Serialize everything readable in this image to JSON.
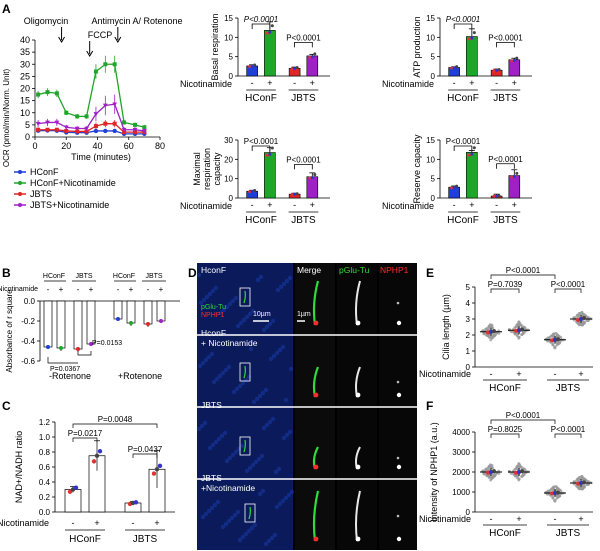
{
  "colors": {
    "hconf": "#1f3fd6",
    "hconf_nic": "#1fa52a",
    "jbts": "#e02525",
    "jbts_nic": "#a020c8",
    "green_fluor": "#2fdc3a",
    "red_fluor": "#ff2a2a"
  },
  "panels": {
    "A": "A",
    "B": "B",
    "C": "C",
    "D": "D",
    "E": "E",
    "F": "F"
  },
  "chart_data": [
    {
      "id": "A-trace",
      "type": "line",
      "xlabel": "Time (minutes)",
      "ylabel": "OCR (pmol/min/Norm. Unit)",
      "xlim": [
        0,
        80
      ],
      "ylim": [
        0,
        40
      ],
      "xticks": [
        0,
        20,
        40,
        60,
        80
      ],
      "yticks": [
        0,
        5,
        10,
        15,
        20,
        25,
        30,
        35,
        40
      ],
      "annotations": [
        "Oligomycin",
        "FCCP",
        "Antimycin A/\nRotenone"
      ],
      "annotation_x": [
        17,
        35,
        53
      ],
      "x": [
        2,
        8,
        14,
        20,
        27,
        33,
        39,
        45,
        51,
        57,
        64,
        70
      ],
      "series": [
        {
          "name": "HConF",
          "values": [
            2.6,
            2.7,
            2.6,
            1.9,
            1.8,
            1.8,
            2.5,
            2.5,
            2.5,
            1.3,
            1.3,
            1.3
          ]
        },
        {
          "name": "HConF+Nicotinamide",
          "values": [
            17.5,
            18.5,
            18,
            10,
            8.5,
            8.5,
            27,
            30,
            30,
            6,
            5,
            4
          ]
        },
        {
          "name": "JBTS",
          "values": [
            3,
            3,
            3,
            2.5,
            2.3,
            2.3,
            4.5,
            5.5,
            5.5,
            2,
            2,
            2
          ]
        },
        {
          "name": "JBTS+Nicotinamide",
          "values": [
            5.5,
            6,
            6,
            4,
            3.5,
            3.5,
            9.5,
            13,
            13.5,
            3,
            3,
            2.5
          ]
        }
      ],
      "errors": [
        [
          0.3,
          0.3,
          0.3,
          0.3,
          0.3,
          0.3,
          0.5,
          0.5,
          0.5,
          0.3,
          0.3,
          0.3
        ],
        [
          1.5,
          1.6,
          1.5,
          1,
          1,
          1,
          3,
          3.5,
          3.5,
          1,
          1,
          1
        ],
        [
          0.5,
          0.5,
          0.5,
          0.5,
          0.5,
          0.5,
          1.5,
          1.5,
          1.5,
          0.4,
          0.4,
          0.4
        ],
        [
          1.5,
          1.5,
          1.5,
          1,
          1,
          1,
          3,
          4,
          4,
          1,
          1,
          1
        ]
      ]
    },
    {
      "id": "A-basal",
      "type": "bar",
      "ylabel": "Basal respiration",
      "ylim": [
        0,
        15
      ],
      "yticks": [
        0,
        5,
        10,
        15
      ],
      "categories": [
        "HConF -",
        "HConF +",
        "JBTS -",
        "JBTS +"
      ],
      "values": [
        2.6,
        11.8,
        2.0,
        5.2
      ],
      "errors": [
        0.3,
        2.2,
        0.3,
        0.4
      ],
      "sig": [
        {
          "label": "P<0.0001",
          "italic": true
        },
        {
          "label": "P<0.0001",
          "italic": false
        }
      ]
    },
    {
      "id": "A-atp",
      "type": "bar",
      "ylabel": "ATP production",
      "ylim": [
        0,
        15
      ],
      "yticks": [
        0,
        5,
        10,
        15
      ],
      "categories": [
        "HConF -",
        "HConF +",
        "JBTS -",
        "JBTS +"
      ],
      "values": [
        2.2,
        10.2,
        1.5,
        4.2
      ],
      "errors": [
        0.2,
        2.0,
        0.3,
        0.4
      ],
      "sig": [
        {
          "label": "P<0.0001",
          "italic": true
        },
        {
          "label": "P<0.0001",
          "italic": false
        }
      ]
    },
    {
      "id": "A-maximal",
      "type": "bar",
      "ylabel": "Maximal respiration capacity",
      "ylim": [
        0,
        30
      ],
      "yticks": [
        0,
        10,
        20,
        30
      ],
      "categories": [
        "HConF -",
        "HConF +",
        "JBTS -",
        "JBTS +"
      ],
      "values": [
        3.5,
        23.5,
        2.0,
        11.0
      ],
      "errors": [
        0.5,
        2.5,
        0.5,
        2.0
      ],
      "sig": [
        {
          "label": "P<0.0001",
          "italic": false
        },
        {
          "label": "P<0.0001",
          "italic": false
        }
      ]
    },
    {
      "id": "A-reserve",
      "type": "bar",
      "ylabel": "Reserve capacity",
      "ylim": [
        0,
        15
      ],
      "yticks": [
        0,
        5,
        10,
        15
      ],
      "categories": [
        "HConF -",
        "HConF +",
        "JBTS -",
        "JBTS +"
      ],
      "values": [
        2.8,
        11.8,
        0.5,
        5.8
      ],
      "errors": [
        0.3,
        0.5,
        0.5,
        1.5
      ],
      "sig": [
        {
          "label": "P<0.0001",
          "italic": false
        },
        {
          "label": "P<0.0001",
          "italic": false
        }
      ]
    },
    {
      "id": "B",
      "type": "bar",
      "ylabel": "Absorbance of r square",
      "ylim": [
        -0.6,
        0.0
      ],
      "yticks": [
        0.0,
        -0.2,
        -0.4,
        -0.6
      ],
      "groups": [
        "-Rotenone",
        "+Rotenone"
      ],
      "categories": [
        "HConF -",
        "HConF +",
        "JBTS -",
        "JBTS +"
      ],
      "values_minus_rotenone": [
        -0.46,
        -0.47,
        -0.48,
        -0.43
      ],
      "values_plus_rotenone": [
        -0.18,
        -0.22,
        -0.23,
        -0.2
      ],
      "errors": [
        0.02,
        0.03,
        0.03,
        0.02
      ],
      "sig": [
        {
          "label": "P=0.0367"
        },
        {
          "label": "P=0.0153"
        }
      ]
    },
    {
      "id": "C",
      "type": "bar",
      "ylabel": "NAD+/NADH ratio",
      "ylim": [
        0,
        1.2
      ],
      "yticks": [
        0.0,
        0.2,
        0.4,
        0.6,
        0.8,
        1.0,
        1.2
      ],
      "categories": [
        "HConF -",
        "HConF +",
        "JBTS -",
        "JBTS +"
      ],
      "values": [
        0.3,
        0.75,
        0.12,
        0.57
      ],
      "errors": [
        0.04,
        0.2,
        0.02,
        0.25
      ],
      "sig": [
        {
          "label": "P=0.0048"
        },
        {
          "label": "P=0.0217"
        },
        {
          "label": "P=0.0437"
        }
      ]
    },
    {
      "id": "E",
      "type": "scatter",
      "ylabel": "Cilia length (µm)",
      "ylim": [
        0,
        5
      ],
      "yticks": [
        0,
        1,
        2,
        3,
        4,
        5
      ],
      "categories": [
        "HConF -",
        "HConF +",
        "JBTS -",
        "JBTS +"
      ],
      "values": [
        2.2,
        2.3,
        1.7,
        3.0
      ],
      "sig": [
        {
          "label": "P<0.0001"
        },
        {
          "label": "P=0.7039"
        },
        {
          "label": "P<0.0001"
        }
      ]
    },
    {
      "id": "F",
      "type": "scatter",
      "ylabel": "Intensity of NPHP1 (a.u.)",
      "ylim": [
        0,
        4000
      ],
      "yticks": [
        0,
        1000,
        2000,
        3000,
        4000
      ],
      "categories": [
        "HConF -",
        "HConF +",
        "JBTS -",
        "JBTS +"
      ],
      "values": [
        2000,
        2000,
        950,
        1450
      ],
      "sig": [
        {
          "label": "P<0.0001"
        },
        {
          "label": "P=0.8025"
        },
        {
          "label": "P<0.0001"
        }
      ]
    }
  ],
  "labels": {
    "nicotinamide": "Nicotinamide",
    "minus": "-",
    "plus": "+",
    "hconf": "HConF",
    "jbts": "JBTS",
    "minus_rotenone": "-Rotenone",
    "plus_rotenone": "+Rotenone"
  },
  "legendA": [
    "HConF",
    "HConF+Nicotinamide",
    "JBTS",
    "JBTS+Nicotinamide"
  ],
  "panelD": {
    "rows": [
      "HconF",
      "HconF\n+ Nicotinamide",
      "JBTS",
      "JBTS\n+Nicotinamide"
    ],
    "cols": [
      "Merge",
      "pGlu-Tu",
      "NPHP1"
    ],
    "stain1": "pGlu-Tu",
    "stain2": "NPHP1",
    "scale1": "10µm",
    "scale2": "1µm"
  }
}
